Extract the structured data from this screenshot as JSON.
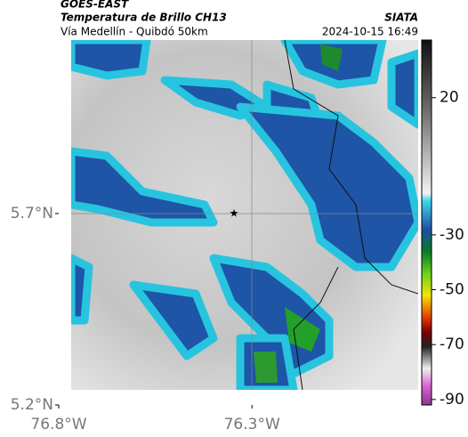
{
  "header": {
    "product": "GOES-EAST",
    "subtitle": "Temperatura de Brillo CH13",
    "route": "Vía Medellín - Quibdó 50km",
    "source": "SIATA",
    "datetime": "2024-10-15 16:49"
  },
  "map": {
    "lat_lim": [
      5.2,
      6.153
    ],
    "lon_lim": [
      -76.8,
      -75.87
    ],
    "lat_ticks": [
      {
        "value": 5.2,
        "label": "5.2°N"
      },
      {
        "value": 5.7,
        "label": "5.7°N"
      }
    ],
    "lon_ticks": [
      {
        "value": -76.8,
        "label": "76.8°W"
      },
      {
        "value": -76.3,
        "label": "76.3°W"
      }
    ]
  },
  "colorbar": {
    "lim": [
      41,
      -92
    ],
    "ticks": [
      20,
      -30,
      -50,
      -70,
      -90
    ]
  }
}
